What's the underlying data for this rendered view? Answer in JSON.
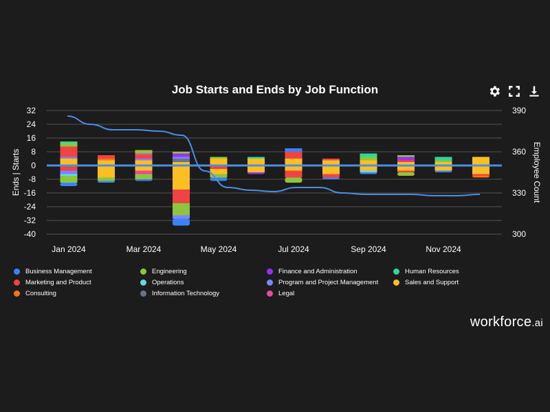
{
  "title": "Job Starts and Ends by Job Function",
  "toolbar": [
    {
      "name": "settings-icon"
    },
    {
      "name": "expand-icon"
    },
    {
      "name": "download-icon"
    }
  ],
  "brand": {
    "name": "workforce",
    "suffix": ".ai"
  },
  "colors": {
    "Business Management": "#3b82f6",
    "Engineering": "#8cc63f",
    "Finance and Administration": "#9b30f0",
    "Human Resources": "#34d399",
    "Marketing and Product": "#ef4444",
    "Operations": "#67d8e0",
    "Program and Project Management": "#7c83fd",
    "Sales and Support": "#fbbf24",
    "Consulting": "#f97316",
    "Information Technology": "#64748b",
    "Legal": "#ec4899",
    "zero_line": "#4a8fe7",
    "headcount_line": "#4a8fe7"
  },
  "chart_data": {
    "type": "bar",
    "title": "Job Starts and Ends by Job Function",
    "xlabel": "",
    "ylabel": "Ends | Starts",
    "y2label": "Employee Count",
    "ylim": [
      -40,
      32
    ],
    "y_ticks": [
      32,
      24,
      16,
      8,
      0,
      -8,
      -16,
      -24,
      -32,
      -40
    ],
    "y2lim": [
      300,
      390
    ],
    "y2_ticks": [
      390,
      360,
      330,
      300
    ],
    "x_tick_labels": [
      "Jan 2024",
      "Mar 2024",
      "May 2024",
      "Jul 2024",
      "Sep 2024",
      "Nov 2024"
    ],
    "categories": [
      "Jan 2024",
      "Feb 2024",
      "Mar 2024",
      "Apr 2024",
      "May 2024",
      "Jun 2024",
      "Jul 2024",
      "Aug 2024",
      "Sep 2024",
      "Oct 2024",
      "Nov 2024",
      "Dec 2024"
    ],
    "legend": [
      "Business Management",
      "Engineering",
      "Finance and Administration",
      "Human Resources",
      "Marketing and Product",
      "Operations",
      "Program and Project Management",
      "Sales and Support",
      "Consulting",
      "Information Technology",
      "Legal"
    ],
    "legend_position": "bottom",
    "starts": [
      [
        [
          "Sales and Support",
          4
        ],
        [
          "Program and Project Management",
          1
        ],
        [
          "Marketing and Product",
          6
        ],
        [
          "Engineering",
          2
        ],
        [
          "Human Resources",
          1
        ]
      ],
      [
        [
          "Sales and Support",
          3
        ],
        [
          "Consulting",
          1
        ],
        [
          "Marketing and Product",
          2
        ]
      ],
      [
        [
          "Sales and Support",
          3
        ],
        [
          "Program and Project Management",
          1
        ],
        [
          "Marketing and Product",
          2
        ],
        [
          "Legal",
          1
        ],
        [
          "Engineering",
          2
        ]
      ],
      [
        [
          "Sales and Support",
          2
        ],
        [
          "Information Technology",
          2
        ],
        [
          "Program and Project Management",
          1
        ],
        [
          "Finance and Administration",
          2
        ],
        [
          "Engineering",
          1
        ]
      ],
      [
        [
          "Sales and Support",
          4
        ],
        [
          "Engineering",
          1
        ]
      ],
      [
        [
          "Sales and Support",
          4
        ],
        [
          "Human Resources",
          1
        ]
      ],
      [
        [
          "Sales and Support",
          4
        ],
        [
          "Marketing and Product",
          4
        ],
        [
          "Business Management",
          2
        ]
      ],
      [
        [
          "Sales and Support",
          3
        ],
        [
          "Marketing and Product",
          1
        ]
      ],
      [
        [
          "Sales and Support",
          3
        ],
        [
          "Engineering",
          2
        ],
        [
          "Human Resources",
          2
        ]
      ],
      [
        [
          "Sales and Support",
          2
        ],
        [
          "Marketing and Product",
          1
        ],
        [
          "Finance and Administration",
          2
        ],
        [
          "Engineering",
          1
        ]
      ],
      [
        [
          "Sales and Support",
          2
        ],
        [
          "Engineering",
          1
        ],
        [
          "Human Resources",
          2
        ]
      ],
      [
        [
          "Sales and Support",
          5
        ]
      ]
    ],
    "ends": [
      [
        [
          "Marketing and Product",
          3
        ],
        [
          "Program and Project Management",
          2
        ],
        [
          "Operations",
          1
        ],
        [
          "Engineering",
          3
        ],
        [
          "Engineering",
          1
        ],
        [
          "Business Management",
          2
        ]
      ],
      [
        [
          "Sales and Support",
          4
        ],
        [
          "Sales and Support",
          3
        ],
        [
          "Engineering",
          2
        ],
        [
          "Business Management",
          1
        ]
      ],
      [
        [
          "Sales and Support",
          3
        ],
        [
          "Legal",
          2
        ],
        [
          "Engineering",
          3
        ],
        [
          "Business Management",
          1
        ]
      ],
      [
        [
          "Sales and Support",
          14
        ],
        [
          "Marketing and Product",
          8
        ],
        [
          "Engineering",
          7
        ],
        [
          "Program and Project Management",
          2
        ],
        [
          "Business Management",
          4
        ]
      ],
      [
        [
          "Marketing and Product",
          2
        ],
        [
          "Sales and Support",
          3
        ],
        [
          "Engineering",
          2
        ],
        [
          "Business Management",
          2
        ]
      ],
      [
        [
          "Sales and Support",
          4
        ],
        [
          "Finance and Administration",
          1
        ]
      ],
      [
        [
          "Sales and Support",
          3
        ],
        [
          "Marketing and Product",
          4
        ],
        [
          "Engineering",
          3
        ]
      ],
      [
        [
          "Sales and Support",
          5
        ],
        [
          "Marketing and Product",
          2
        ],
        [
          "Business Management",
          1
        ]
      ],
      [
        [
          "Sales and Support",
          3
        ],
        [
          "Operations",
          1
        ],
        [
          "Business Management",
          1
        ]
      ],
      [
        [
          "Sales and Support",
          3
        ],
        [
          "Marketing and Product",
          1
        ],
        [
          "Engineering",
          2
        ]
      ],
      [
        [
          "Sales and Support",
          3
        ],
        [
          "Business Management",
          1
        ]
      ],
      [
        [
          "Sales and Support",
          5
        ],
        [
          "Marketing and Product",
          1
        ],
        [
          "Consulting",
          1
        ]
      ]
    ],
    "employee_count": [
      386,
      380,
      376,
      376,
      375,
      372,
      346,
      334,
      332,
      331,
      334,
      334,
      330,
      329,
      329,
      329,
      328,
      328,
      329
    ]
  }
}
